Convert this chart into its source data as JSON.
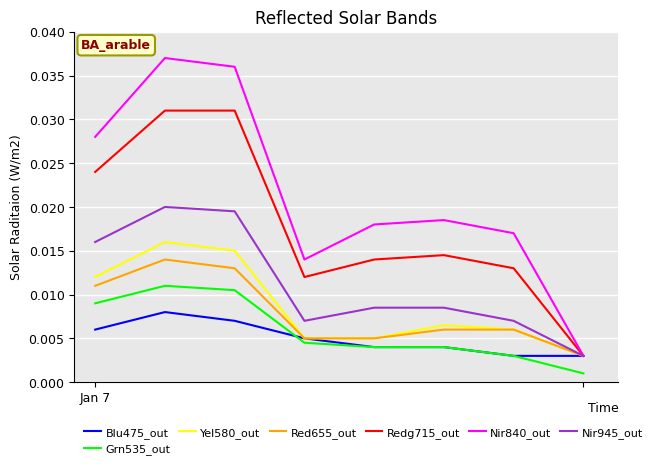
{
  "title": "Reflected Solar Bands",
  "ylabel": "Solar Raditaion (W/m2)",
  "annotation": "BA_arable",
  "ylim": [
    0.0,
    0.04
  ],
  "x_positions": [
    0,
    1,
    2,
    3,
    4,
    5,
    6,
    7
  ],
  "x_first_label": "Jan 7",
  "x_last_label": "Time",
  "series_order": [
    "Blu475_out",
    "Grn535_out",
    "Yel580_out",
    "Red655_out",
    "Redg715_out",
    "Nir840_out",
    "Nir945_out"
  ],
  "series": {
    "Blu475_out": {
      "color": "#0000ff",
      "values": [
        0.006,
        0.008,
        0.007,
        0.005,
        0.004,
        0.004,
        0.003,
        0.003
      ]
    },
    "Grn535_out": {
      "color": "#00ff00",
      "values": [
        0.009,
        0.011,
        0.0105,
        0.0045,
        0.004,
        0.004,
        0.003,
        0.001
      ]
    },
    "Yel580_out": {
      "color": "#ffff00",
      "values": [
        0.012,
        0.016,
        0.015,
        0.005,
        0.005,
        0.0065,
        0.006,
        0.003
      ]
    },
    "Red655_out": {
      "color": "#ffa500",
      "values": [
        0.011,
        0.014,
        0.013,
        0.005,
        0.005,
        0.006,
        0.006,
        0.003
      ]
    },
    "Redg715_out": {
      "color": "#ff0000",
      "values": [
        0.024,
        0.031,
        0.031,
        0.012,
        0.014,
        0.0145,
        0.013,
        0.003
      ]
    },
    "Nir840_out": {
      "color": "#ff00ff",
      "values": [
        0.028,
        0.037,
        0.036,
        0.014,
        0.018,
        0.0185,
        0.017,
        0.003
      ]
    },
    "Nir945_out": {
      "color": "#9933cc",
      "values": [
        0.016,
        0.02,
        0.0195,
        0.007,
        0.0085,
        0.0085,
        0.007,
        0.003
      ]
    }
  },
  "plot_bg_color": "#e8e8e8",
  "fig_bg_color": "#ffffff",
  "grid_color": "#ffffff",
  "annotation_text_color": "#8b0000",
  "annotation_box_facecolor": "#ffffcc",
  "annotation_box_edgecolor": "#999900",
  "title_fontsize": 12,
  "tick_fontsize": 9,
  "ylabel_fontsize": 9,
  "legend_fontsize": 8,
  "linewidth": 1.5
}
